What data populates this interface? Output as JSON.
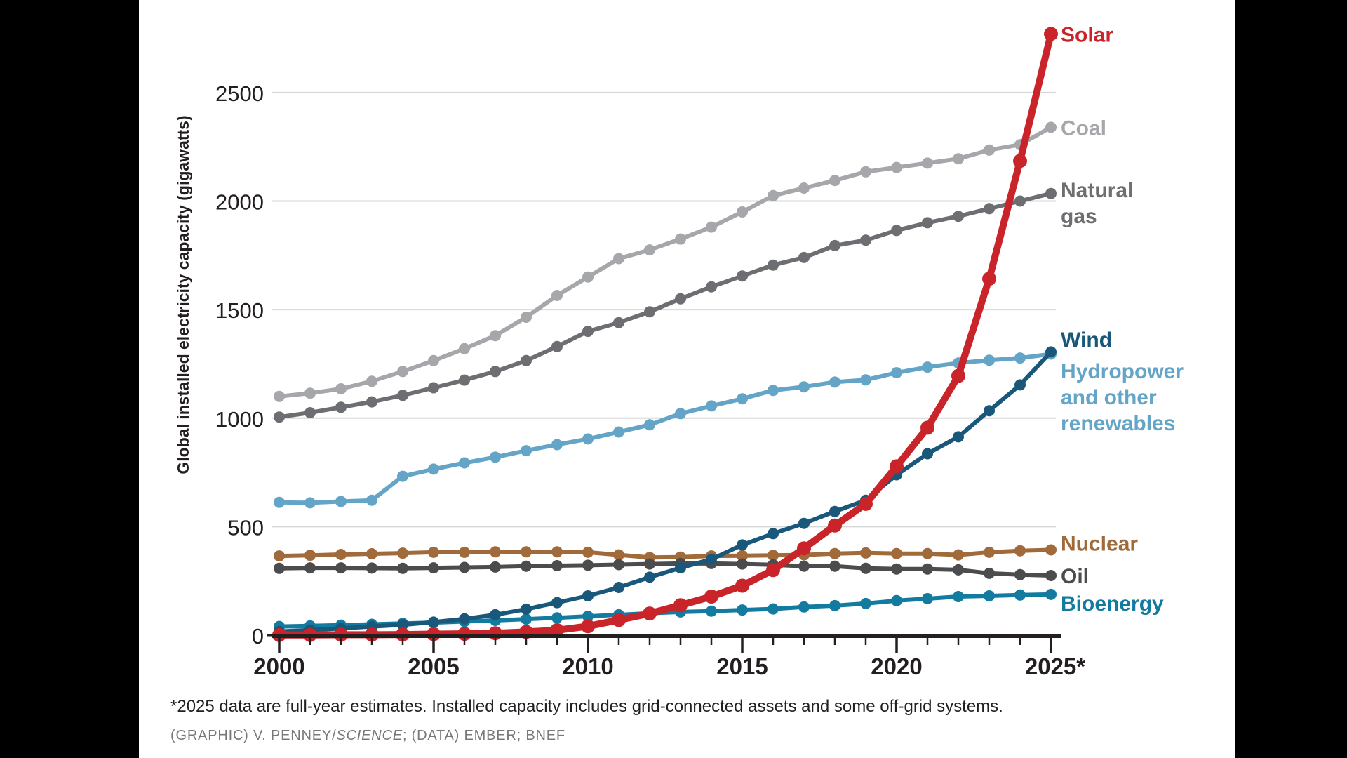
{
  "figure": {
    "y_axis_title": "Global installed electricity capacity (gigawatts)",
    "footnote": "*2025 data are full-year estimates. Installed capacity includes grid-connected assets and some off-grid systems.",
    "credit_prefix": "(GRAPHIC) V. PENNEY/",
    "credit_italic": "SCIENCE",
    "credit_suffix": "; (DATA) EMBER; BNEF",
    "x_tick_labels": [
      "2000",
      "2005",
      "2010",
      "2015",
      "2020",
      "2025*"
    ],
    "y_tick_labels": [
      "0",
      "500",
      "1000",
      "1500",
      "2000",
      "2500"
    ],
    "colors": {
      "background": "#ffffff",
      "letterbox": "#000000",
      "gridline": "#d7d7d7",
      "axis": "#231f20"
    }
  },
  "chart_data": {
    "type": "line",
    "title": "",
    "xlabel": "",
    "ylabel": "Global installed electricity capacity (gigawatts)",
    "x": [
      2000,
      2001,
      2002,
      2003,
      2004,
      2005,
      2006,
      2007,
      2008,
      2009,
      2010,
      2011,
      2012,
      2013,
      2014,
      2015,
      2016,
      2017,
      2018,
      2019,
      2020,
      2021,
      2022,
      2023,
      2024,
      2025
    ],
    "y_ticks": [
      0,
      500,
      1000,
      1500,
      2000,
      2500
    ],
    "ylim": [
      0,
      2870
    ],
    "grid": "horizontal",
    "legend_position": "right-end-labels",
    "note": "2025 data are full-year estimates",
    "series": [
      {
        "name": "Solar",
        "color": "#c9242a",
        "label_lines": [
          "Solar"
        ],
        "values": [
          1,
          1,
          2,
          2,
          3,
          5,
          6,
          9,
          15,
          23,
          41,
          70,
          100,
          138,
          178,
          228,
          300,
          400,
          505,
          605,
          778,
          956,
          1195,
          1642,
          2185,
          2770
        ]
      },
      {
        "name": "Coal",
        "color": "#a5a7aa",
        "label_lines": [
          "Coal"
        ],
        "values": [
          1100,
          1115,
          1135,
          1170,
          1215,
          1265,
          1320,
          1380,
          1465,
          1565,
          1650,
          1735,
          1775,
          1825,
          1880,
          1950,
          2025,
          2060,
          2095,
          2135,
          2155,
          2175,
          2195,
          2235,
          2260,
          2340
        ]
      },
      {
        "name": "Natural gas",
        "color": "#6d6e71",
        "label_lines": [
          "Natural",
          "gas"
        ],
        "values": [
          1005,
          1025,
          1050,
          1075,
          1105,
          1140,
          1175,
          1215,
          1265,
          1330,
          1400,
          1440,
          1490,
          1550,
          1605,
          1655,
          1705,
          1740,
          1795,
          1820,
          1865,
          1900,
          1930,
          1965,
          2000,
          2035
        ]
      },
      {
        "name": "Wind",
        "color": "#19587a",
        "label_lines": [
          "Wind"
        ],
        "values": [
          17,
          24,
          31,
          40,
          48,
          60,
          75,
          94,
          120,
          150,
          181,
          220,
          267,
          310,
          350,
          416,
          468,
          515,
          570,
          622,
          739,
          836,
          914,
          1034,
          1153,
          1305
        ]
      },
      {
        "name": "Hydropower and other renewables",
        "color": "#64a5c7",
        "label_lines": [
          "Hydropower",
          "and other",
          "renewables"
        ],
        "values": [
          612,
          610,
          616,
          622,
          732,
          765,
          794,
          820,
          850,
          878,
          904,
          936,
          969,
          1021,
          1056,
          1089,
          1128,
          1144,
          1166,
          1176,
          1209,
          1235,
          1254,
          1267,
          1277,
          1295
        ]
      },
      {
        "name": "Nuclear",
        "color": "#a06a3a",
        "label_lines": [
          "Nuclear"
        ],
        "values": [
          365,
          368,
          372,
          375,
          378,
          382,
          382,
          384,
          384,
          384,
          382,
          370,
          358,
          360,
          365,
          366,
          368,
          370,
          376,
          379,
          376,
          376,
          370,
          382,
          389,
          393
        ]
      },
      {
        "name": "Oil",
        "color": "#4c4c4e",
        "label_lines": [
          "Oil"
        ],
        "values": [
          308,
          310,
          310,
          309,
          308,
          310,
          312,
          314,
          318,
          320,
          322,
          325,
          328,
          330,
          330,
          328,
          324,
          318,
          318,
          308,
          305,
          305,
          301,
          285,
          279,
          275
        ]
      },
      {
        "name": "Bioenergy",
        "color": "#147ba0",
        "label_lines": [
          "Bioenergy"
        ],
        "values": [
          40,
          43,
          46,
          50,
          54,
          58,
          63,
          68,
          74,
          80,
          87,
          94,
          101,
          107,
          111,
          116,
          121,
          130,
          136,
          146,
          159,
          168,
          178,
          181,
          185,
          188
        ]
      }
    ]
  }
}
